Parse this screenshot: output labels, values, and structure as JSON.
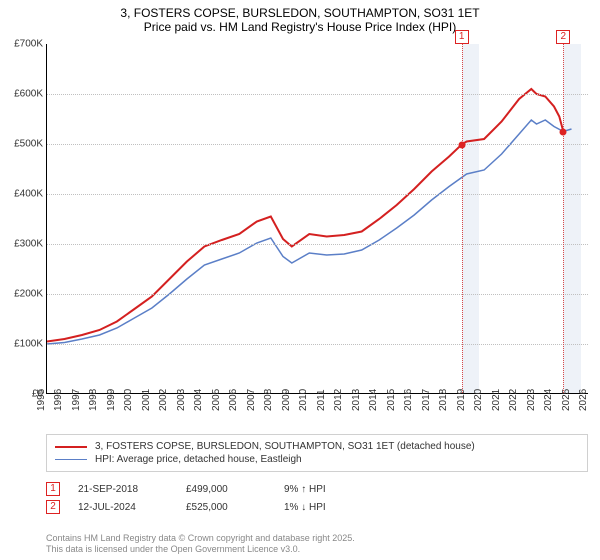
{
  "title": {
    "line1": "3, FOSTERS COPSE, BURSLEDON, SOUTHAMPTON, SO31 1ET",
    "line2": "Price paid vs. HM Land Registry's House Price Index (HPI)",
    "fontsize": 12,
    "color": "#000000"
  },
  "chart": {
    "type": "line",
    "background_color": "#ffffff",
    "grid_color": "#c0c0c0",
    "band_color": "#eef2f8",
    "x": {
      "min": 1995,
      "max": 2026,
      "ticks": [
        1995,
        1996,
        1997,
        1998,
        1999,
        2000,
        2001,
        2002,
        2003,
        2004,
        2005,
        2006,
        2007,
        2008,
        2009,
        2010,
        2011,
        2012,
        2013,
        2014,
        2015,
        2016,
        2017,
        2018,
        2019,
        2020,
        2021,
        2022,
        2023,
        2024,
        2025,
        2026
      ],
      "label_fontsize": 10
    },
    "y": {
      "min": 0,
      "max": 700000,
      "ticks": [
        {
          "v": 0,
          "label": "£0"
        },
        {
          "v": 100000,
          "label": "£100K"
        },
        {
          "v": 200000,
          "label": "£200K"
        },
        {
          "v": 300000,
          "label": "£300K"
        },
        {
          "v": 400000,
          "label": "£400K"
        },
        {
          "v": 500000,
          "label": "£500K"
        },
        {
          "v": 600000,
          "label": "£600K"
        },
        {
          "v": 700000,
          "label": "£700K"
        }
      ],
      "label_fontsize": 10
    },
    "bands": [
      {
        "from": 2018.72,
        "to": 2019.72
      },
      {
        "from": 2024.53,
        "to": 2025.53
      }
    ],
    "markers": [
      {
        "num": "1",
        "x": 2018.72,
        "y": 499000,
        "num_y": -14
      },
      {
        "num": "2",
        "x": 2024.53,
        "y": 525000,
        "num_y": -14
      }
    ],
    "series": [
      {
        "name": "price_paid",
        "label": "3, FOSTERS COPSE, BURSLEDON, SOUTHAMPTON, SO31 1ET (detached house)",
        "color": "#d42020",
        "width": 2,
        "data": [
          [
            1995,
            105000
          ],
          [
            1996,
            110000
          ],
          [
            1997,
            118000
          ],
          [
            1998,
            128000
          ],
          [
            1999,
            145000
          ],
          [
            2000,
            170000
          ],
          [
            2001,
            195000
          ],
          [
            2002,
            230000
          ],
          [
            2003,
            265000
          ],
          [
            2004,
            295000
          ],
          [
            2005,
            308000
          ],
          [
            2006,
            320000
          ],
          [
            2007,
            345000
          ],
          [
            2007.8,
            355000
          ],
          [
            2008.5,
            310000
          ],
          [
            2009,
            295000
          ],
          [
            2010,
            320000
          ],
          [
            2011,
            315000
          ],
          [
            2012,
            318000
          ],
          [
            2013,
            325000
          ],
          [
            2014,
            350000
          ],
          [
            2015,
            378000
          ],
          [
            2016,
            410000
          ],
          [
            2017,
            445000
          ],
          [
            2018,
            475000
          ],
          [
            2018.72,
            499000
          ],
          [
            2019,
            505000
          ],
          [
            2020,
            510000
          ],
          [
            2021,
            545000
          ],
          [
            2022,
            590000
          ],
          [
            2022.7,
            610000
          ],
          [
            2023,
            600000
          ],
          [
            2023.5,
            595000
          ],
          [
            2024,
            575000
          ],
          [
            2024.3,
            555000
          ],
          [
            2024.53,
            525000
          ]
        ]
      },
      {
        "name": "hpi",
        "label": "HPI: Average price, detached house, Eastleigh",
        "color": "#5b7fc7",
        "width": 1.5,
        "data": [
          [
            1995,
            100000
          ],
          [
            1996,
            103000
          ],
          [
            1997,
            110000
          ],
          [
            1998,
            118000
          ],
          [
            1999,
            132000
          ],
          [
            2000,
            152000
          ],
          [
            2001,
            172000
          ],
          [
            2002,
            200000
          ],
          [
            2003,
            230000
          ],
          [
            2004,
            258000
          ],
          [
            2005,
            270000
          ],
          [
            2006,
            282000
          ],
          [
            2007,
            302000
          ],
          [
            2007.8,
            312000
          ],
          [
            2008.5,
            275000
          ],
          [
            2009,
            262000
          ],
          [
            2010,
            282000
          ],
          [
            2011,
            278000
          ],
          [
            2012,
            280000
          ],
          [
            2013,
            288000
          ],
          [
            2014,
            308000
          ],
          [
            2015,
            332000
          ],
          [
            2016,
            358000
          ],
          [
            2017,
            388000
          ],
          [
            2018,
            415000
          ],
          [
            2019,
            440000
          ],
          [
            2020,
            448000
          ],
          [
            2021,
            480000
          ],
          [
            2022,
            520000
          ],
          [
            2022.7,
            548000
          ],
          [
            2023,
            540000
          ],
          [
            2023.5,
            548000
          ],
          [
            2024,
            535000
          ],
          [
            2024.53,
            525000
          ],
          [
            2025,
            530000
          ]
        ]
      }
    ]
  },
  "legend": {
    "entries": [
      {
        "color": "#d42020",
        "width": 2,
        "label_path": "chart.series.0.label"
      },
      {
        "color": "#5b7fc7",
        "width": 1.5,
        "label_path": "chart.series.1.label"
      }
    ]
  },
  "transactions": [
    {
      "num": "1",
      "date": "21-SEP-2018",
      "price": "£499,000",
      "pct": "9%",
      "arrow": "↑",
      "vs": "HPI"
    },
    {
      "num": "2",
      "date": "12-JUL-2024",
      "price": "£525,000",
      "pct": "1%",
      "arrow": "↓",
      "vs": "HPI"
    }
  ],
  "footer": {
    "line1": "Contains HM Land Registry data © Crown copyright and database right 2025.",
    "line2": "This data is licensed under the Open Government Licence v3.0."
  }
}
